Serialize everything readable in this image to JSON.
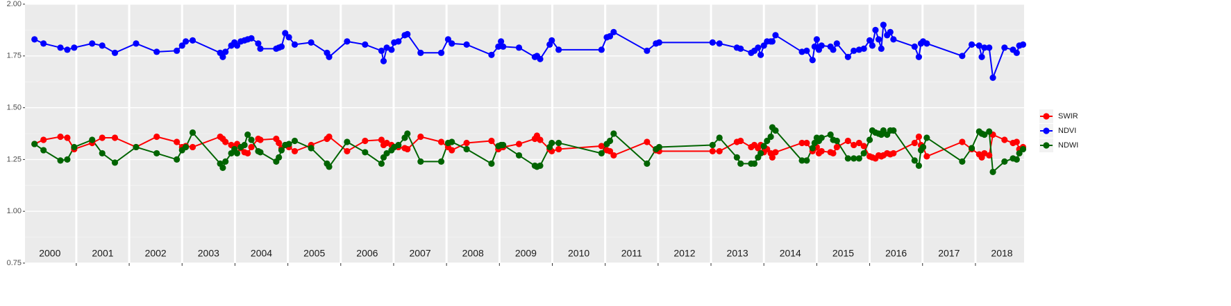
{
  "chart_data": {
    "type": "line",
    "x": [
      2000.21,
      2000.38,
      2000.7,
      2000.83,
      2000.96,
      2001.3,
      2001.49,
      2001.73,
      2002.13,
      2002.52,
      2002.9,
      2003.0,
      2003.07,
      2003.2,
      2003.72,
      2003.77,
      2003.82,
      2003.93,
      2003.99,
      2004.04,
      2004.11,
      2004.18,
      2004.24,
      2004.31,
      2004.44,
      2004.48,
      2004.78,
      2004.83,
      2004.88,
      2004.95,
      2005.02,
      2005.13,
      2005.44,
      2005.74,
      2005.78,
      2006.12,
      2006.46,
      2006.77,
      2006.81,
      2006.87,
      2006.96,
      2007.01,
      2007.09,
      2007.21,
      2007.26,
      2007.51,
      2007.9,
      2008.03,
      2008.1,
      2008.38,
      2008.85,
      2008.98,
      2009.03,
      2009.07,
      2009.37,
      2009.67,
      2009.71,
      2009.77,
      2009.95,
      2009.99,
      2010.12,
      2010.93,
      2011.03,
      2011.09,
      2011.16,
      2011.79,
      2011.96,
      2012.02,
      2013.03,
      2013.16,
      2013.49,
      2013.56,
      2013.76,
      2013.82,
      2013.89,
      2013.94,
      2014.0,
      2014.06,
      2014.13,
      2014.16,
      2014.22,
      2014.72,
      2014.81,
      2014.92,
      2014.96,
      2015.0,
      2015.04,
      2015.09,
      2015.26,
      2015.31,
      2015.38,
      2015.59,
      2015.7,
      2015.8,
      2015.89,
      2016.0,
      2016.05,
      2016.11,
      2016.17,
      2016.22,
      2016.26,
      2016.33,
      2016.39,
      2016.45,
      2016.85,
      2016.93,
      2016.97,
      2017.01,
      2017.08,
      2017.75,
      2017.93,
      2018.07,
      2018.12,
      2018.17,
      2018.26,
      2018.33,
      2018.55,
      2018.71,
      2018.78,
      2018.83,
      2018.9
    ],
    "series": [
      {
        "name": "SWIR",
        "color": "#ff0000",
        "values": [
          1.325,
          1.345,
          1.36,
          1.355,
          1.3,
          1.33,
          1.355,
          1.355,
          1.31,
          1.36,
          1.335,
          1.31,
          1.315,
          1.31,
          1.36,
          1.35,
          1.335,
          1.32,
          1.31,
          1.325,
          1.305,
          1.285,
          1.28,
          1.31,
          1.35,
          1.345,
          1.35,
          1.33,
          1.305,
          1.32,
          1.31,
          1.29,
          1.32,
          1.35,
          1.36,
          1.29,
          1.34,
          1.345,
          1.32,
          1.33,
          1.32,
          1.31,
          1.31,
          1.305,
          1.3,
          1.36,
          1.335,
          1.31,
          1.295,
          1.33,
          1.34,
          1.3,
          1.31,
          1.31,
          1.325,
          1.35,
          1.365,
          1.345,
          1.3,
          1.29,
          1.3,
          1.315,
          1.295,
          1.29,
          1.27,
          1.335,
          1.295,
          1.29,
          1.29,
          1.29,
          1.335,
          1.34,
          1.31,
          1.32,
          1.305,
          1.32,
          1.285,
          1.3,
          1.28,
          1.26,
          1.285,
          1.33,
          1.33,
          1.29,
          1.305,
          1.31,
          1.28,
          1.29,
          1.285,
          1.28,
          1.31,
          1.34,
          1.32,
          1.33,
          1.315,
          1.265,
          1.26,
          1.255,
          1.27,
          1.265,
          1.27,
          1.28,
          1.275,
          1.28,
          1.33,
          1.36,
          1.32,
          1.31,
          1.265,
          1.335,
          1.3,
          1.275,
          1.26,
          1.28,
          1.27,
          1.37,
          1.345,
          1.33,
          1.335,
          1.3,
          1.31
        ]
      },
      {
        "name": "NDVI",
        "color": "#0000ff",
        "values": [
          1.83,
          1.81,
          1.79,
          1.78,
          1.79,
          1.81,
          1.8,
          1.765,
          1.81,
          1.77,
          1.775,
          1.8,
          1.82,
          1.825,
          1.765,
          1.745,
          1.77,
          1.8,
          1.815,
          1.8,
          1.82,
          1.825,
          1.83,
          1.835,
          1.81,
          1.785,
          1.785,
          1.79,
          1.795,
          1.86,
          1.84,
          1.805,
          1.815,
          1.765,
          1.745,
          1.82,
          1.805,
          1.775,
          1.725,
          1.79,
          1.78,
          1.815,
          1.82,
          1.85,
          1.855,
          1.765,
          1.765,
          1.83,
          1.81,
          1.805,
          1.755,
          1.795,
          1.82,
          1.795,
          1.79,
          1.745,
          1.75,
          1.735,
          1.805,
          1.825,
          1.78,
          1.78,
          1.84,
          1.845,
          1.865,
          1.775,
          1.81,
          1.815,
          1.815,
          1.81,
          1.79,
          1.785,
          1.765,
          1.775,
          1.79,
          1.755,
          1.8,
          1.82,
          1.82,
          1.82,
          1.85,
          1.77,
          1.775,
          1.73,
          1.795,
          1.83,
          1.78,
          1.8,
          1.795,
          1.78,
          1.81,
          1.745,
          1.775,
          1.78,
          1.785,
          1.825,
          1.8,
          1.875,
          1.83,
          1.785,
          1.9,
          1.85,
          1.865,
          1.83,
          1.795,
          1.745,
          1.81,
          1.82,
          1.81,
          1.75,
          1.805,
          1.8,
          1.745,
          1.79,
          1.79,
          1.645,
          1.79,
          1.78,
          1.765,
          1.8,
          1.805
        ]
      },
      {
        "name": "NDWI",
        "color": "#006400",
        "values": [
          1.325,
          1.295,
          1.245,
          1.25,
          1.31,
          1.345,
          1.28,
          1.235,
          1.31,
          1.28,
          1.25,
          1.295,
          1.31,
          1.38,
          1.23,
          1.21,
          1.24,
          1.28,
          1.3,
          1.28,
          1.31,
          1.32,
          1.37,
          1.345,
          1.29,
          1.285,
          1.24,
          1.26,
          1.295,
          1.32,
          1.325,
          1.34,
          1.305,
          1.23,
          1.215,
          1.335,
          1.285,
          1.23,
          1.26,
          1.28,
          1.295,
          1.31,
          1.32,
          1.355,
          1.375,
          1.24,
          1.24,
          1.33,
          1.335,
          1.3,
          1.23,
          1.315,
          1.32,
          1.32,
          1.27,
          1.22,
          1.215,
          1.22,
          1.31,
          1.33,
          1.33,
          1.28,
          1.325,
          1.34,
          1.375,
          1.23,
          1.3,
          1.31,
          1.32,
          1.355,
          1.26,
          1.23,
          1.23,
          1.23,
          1.26,
          1.28,
          1.315,
          1.34,
          1.36,
          1.405,
          1.39,
          1.245,
          1.245,
          1.305,
          1.33,
          1.355,
          1.34,
          1.355,
          1.37,
          1.345,
          1.34,
          1.255,
          1.255,
          1.255,
          1.28,
          1.345,
          1.39,
          1.38,
          1.375,
          1.37,
          1.39,
          1.37,
          1.39,
          1.39,
          1.245,
          1.22,
          1.295,
          1.31,
          1.355,
          1.24,
          1.305,
          1.385,
          1.375,
          1.37,
          1.385,
          1.19,
          1.24,
          1.255,
          1.25,
          1.28,
          1.3
        ]
      }
    ],
    "xlim": [
      2000.03,
      2018.92
    ],
    "xticks": [
      2001,
      2002,
      2003,
      2004,
      2005,
      2006,
      2007,
      2008,
      2009,
      2010,
      2011,
      2012,
      2013,
      2014,
      2015,
      2016,
      2017,
      2018
    ],
    "year_labels": [
      "2000",
      "2001",
      "2002",
      "2003",
      "2004",
      "2005",
      "2006",
      "2007",
      "2008",
      "2009",
      "2010",
      "2011",
      "2012",
      "2013",
      "2014",
      "2015",
      "2016",
      "2017",
      "2018"
    ],
    "ylim": [
      0.75,
      2.0
    ],
    "yticks": [
      {
        "value": 0.75,
        "label": "0.75"
      },
      {
        "value": 1.0,
        "label": "1.00"
      },
      {
        "value": 1.25,
        "label": "1.25"
      },
      {
        "value": 1.5,
        "label": "1.50"
      },
      {
        "value": 1.75,
        "label": "1.75"
      },
      {
        "value": 2.0,
        "label": "2.00"
      }
    ],
    "grid": true,
    "legend": "right"
  }
}
